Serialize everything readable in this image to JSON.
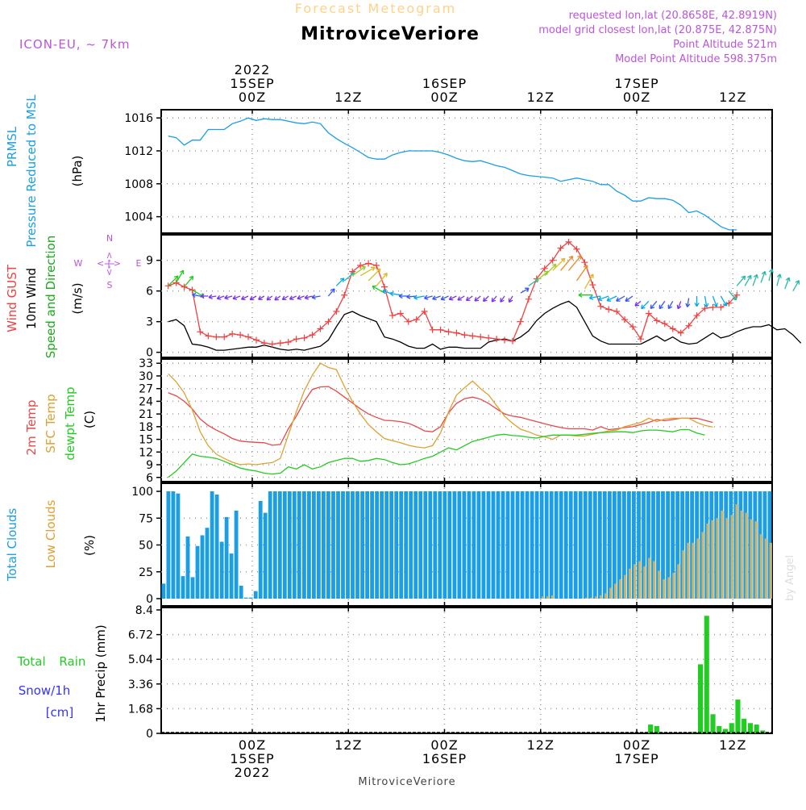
{
  "header": {
    "product": "Forecast Meteogram",
    "location": "MitroviceVeriore",
    "model": "ICON-EU, ~ 7km",
    "requested": "requested lon,lat (20.8658E, 42.8919N)",
    "closest": "model grid closest lon,lat (20.875E, 42.875N)",
    "point_alt": "Point Altitude 521m",
    "model_alt": "Model Point Altitude 598.375m",
    "credit": "by Angel",
    "footer_location": "MitroviceVeriore"
  },
  "top_axis": [
    {
      "lines": [
        "2022",
        "15SEP",
        "00Z"
      ]
    },
    {
      "lines": [
        "12Z"
      ]
    },
    {
      "lines": [
        "16SEP",
        "00Z"
      ]
    },
    {
      "lines": [
        "12Z"
      ]
    },
    {
      "lines": [
        "17SEP",
        "00Z"
      ]
    },
    {
      "lines": [
        "12Z"
      ]
    }
  ],
  "bottom_axis": [
    {
      "lines": [
        "00Z",
        "15SEP",
        "2022"
      ]
    },
    {
      "lines": [
        "12Z"
      ]
    },
    {
      "lines": [
        "00Z",
        "16SEP"
      ]
    },
    {
      "lines": [
        "12Z"
      ]
    },
    {
      "lines": [
        "00Z",
        "17SEP"
      ]
    },
    {
      "lines": [
        "12Z"
      ]
    }
  ],
  "colors": {
    "pressure": "#1a9ee6",
    "gust": "#f04040",
    "wind10m": "#000000",
    "windLabel": "#1aaa1a",
    "t2m": "#e84848",
    "sfc": "#e0a030",
    "dewpt": "#22cc22",
    "totalCloud": "#1a9ee6",
    "lowCloud": "#c8b46e",
    "rain": "#22cc22",
    "snow": "#3333ff",
    "purple": "#bb55dd"
  },
  "compass": {
    "n": "N",
    "s": "S",
    "w": "W",
    "e": "E",
    "arrows": "<-|->"
  },
  "chart_data": [
    {
      "type": "line",
      "name": "pressure",
      "ylabel_lines": [
        "PRMSL",
        "Pressure Reduced to MSL",
        "(hPa)"
      ],
      "ylim": [
        1002,
        1017
      ],
      "yticks": [
        1004,
        1008,
        1012,
        1016
      ],
      "series": [
        {
          "name": "PRMSL",
          "values": [
            1013.8,
            1013.6,
            1012.7,
            1013.3,
            1013.3,
            1014.6,
            1014.6,
            1014.6,
            1015.3,
            1015.6,
            1016.0,
            1015.7,
            1015.9,
            1015.8,
            1015.8,
            1015.6,
            1015.4,
            1015.3,
            1015.5,
            1015.3,
            1014.2,
            1013.5,
            1012.9,
            1012.4,
            1011.8,
            1011.2,
            1011.0,
            1011.0,
            1011.5,
            1011.8,
            1012.0,
            1012.0,
            1012.0,
            1012.0,
            1011.8,
            1011.5,
            1011.1,
            1010.8,
            1010.7,
            1010.8,
            1010.5,
            1010.2,
            1010.0,
            1009.6,
            1009.2,
            1009.0,
            1008.9,
            1008.8,
            1008.7,
            1008.3,
            1008.5,
            1008.7,
            1008.5,
            1008.3,
            1007.9,
            1007.9,
            1007.1,
            1006.6,
            1005.9,
            1005.9,
            1006.3,
            1006.2,
            1006.2,
            1006.0,
            1005.4,
            1004.5,
            1004.7,
            1004.2,
            1003.5,
            1002.8,
            1002.4,
            1002.4
          ]
        }
      ]
    },
    {
      "type": "line",
      "name": "wind",
      "ylabel_lines": [
        "Wind GUST",
        "10m Wind",
        "Speed and Direction",
        "(m/s)"
      ],
      "ylim": [
        -0.5,
        11.5
      ],
      "yticks": [
        0,
        3,
        6,
        9
      ],
      "series": [
        {
          "name": "Wind GUST",
          "values": [
            6.5,
            6.8,
            6.4,
            6.1,
            2.0,
            1.6,
            1.5,
            1.5,
            1.8,
            1.7,
            1.5,
            1.2,
            0.9,
            0.8,
            0.9,
            1.0,
            1.3,
            1.4,
            1.7,
            2.3,
            3.0,
            4.0,
            5.6,
            7.9,
            8.5,
            8.7,
            8.5,
            6.4,
            3.6,
            3.8,
            3.0,
            3.2,
            4.0,
            2.2,
            2.2,
            2.0,
            1.9,
            1.7,
            1.6,
            1.5,
            1.4,
            1.3,
            1.2,
            1.1,
            3.0,
            5.2,
            7.2,
            8.2,
            9.0,
            10.2,
            10.8,
            10.1,
            8.8,
            6.6,
            4.5,
            4.2,
            4.0,
            3.2,
            2.5,
            1.3,
            3.8,
            3.1,
            2.8,
            2.3,
            1.9,
            2.6,
            3.6,
            4.3,
            4.4,
            4.4,
            4.8,
            5.6
          ]
        },
        {
          "name": "10m Wind",
          "values": [
            3.0,
            3.2,
            2.6,
            0.8,
            0.7,
            0.5,
            0.2,
            0.2,
            0.3,
            0.4,
            0.5,
            0.5,
            0.7,
            0.5,
            0.3,
            0.2,
            0.3,
            0.2,
            0.4,
            0.6,
            1.2,
            2.5,
            3.7,
            4.0,
            3.6,
            3.3,
            3.0,
            1.5,
            1.3,
            1.0,
            0.6,
            0.4,
            0.4,
            0.8,
            0.3,
            0.5,
            0.5,
            0.4,
            0.4,
            0.4,
            1.0,
            1.2,
            1.3,
            1.1,
            1.5,
            2.1,
            3.1,
            3.8,
            4.3,
            4.7,
            5.0,
            4.4,
            3.0,
            1.6,
            1.1,
            0.8,
            0.8,
            0.8,
            0.8,
            0.8,
            1.2,
            1.6,
            1.1,
            1.5,
            1.0,
            0.8,
            0.9,
            1.4,
            1.9,
            1.4,
            1.6,
            2.0,
            2.3,
            2.5,
            2.5,
            2.7,
            2.2,
            2.3,
            1.7,
            0.9
          ]
        }
      ]
    },
    {
      "type": "line",
      "name": "temperature",
      "ylabel_lines": [
        "2m Temp",
        "SFC Temp",
        "dewpt Temp",
        "(C)"
      ],
      "ylim": [
        5,
        34
      ],
      "yticks": [
        6,
        9,
        12,
        15,
        18,
        21,
        24,
        27,
        30,
        33
      ],
      "series": [
        {
          "name": "2m Temp",
          "values": [
            26.0,
            25.3,
            24.0,
            22.2,
            19.8,
            18.3,
            17.2,
            16.3,
            15.2,
            14.6,
            14.4,
            14.3,
            14.2,
            13.6,
            13.8,
            17.5,
            20.5,
            24.0,
            26.8,
            27.4,
            27.5,
            26.4,
            25.0,
            23.6,
            22.2,
            21.0,
            20.2,
            19.5,
            19.4,
            19.2,
            18.8,
            18.0,
            17.0,
            16.8,
            18.0,
            21.3,
            23.5,
            24.6,
            25.0,
            24.5,
            23.5,
            22.2,
            21.0,
            20.5,
            20.2,
            19.7,
            19.2,
            18.7,
            18.2,
            17.8,
            17.5,
            17.5,
            17.5,
            17.2,
            18.0,
            17.3,
            17.5,
            17.8,
            18.0,
            18.5,
            19.0,
            19.7,
            19.4,
            19.7,
            20.0,
            20.0,
            20.0,
            19.5,
            19.0
          ]
        },
        {
          "name": "SFC Temp",
          "values": [
            30.5,
            28.6,
            26.0,
            22.0,
            16.8,
            13.5,
            11.5,
            10.5,
            9.6,
            9.0,
            9.2,
            9.0,
            9.3,
            9.5,
            10.5,
            16.0,
            21.6,
            26.5,
            30.2,
            33.0,
            32.0,
            31.5,
            27.5,
            24.0,
            21.0,
            18.5,
            16.8,
            15.2,
            14.7,
            14.2,
            13.6,
            13.2,
            13.0,
            13.5,
            16.5,
            21.5,
            25.5,
            27.2,
            28.8,
            27.0,
            25.5,
            23.0,
            20.5,
            18.8,
            17.4,
            16.8,
            16.0,
            15.6,
            15.0,
            16.0,
            16.0,
            15.8,
            15.8,
            16.2,
            16.6,
            17.0,
            17.2,
            18.0,
            18.5,
            19.0,
            20.0,
            19.2,
            19.8,
            20.0,
            20.0,
            20.0,
            19.0,
            18.3,
            17.9
          ]
        },
        {
          "name": "dewpt Temp",
          "values": [
            6.0,
            7.5,
            9.5,
            11.5,
            11.0,
            10.8,
            10.5,
            9.8,
            9.0,
            8.2,
            7.8,
            7.5,
            7.0,
            6.8,
            7.0,
            8.5,
            8.0,
            9.0,
            8.0,
            8.5,
            9.5,
            10.0,
            10.5,
            10.5,
            9.8,
            10.0,
            10.5,
            10.2,
            9.5,
            9.0,
            9.2,
            9.8,
            10.5,
            11.0,
            12.0,
            13.0,
            12.5,
            13.5,
            14.5,
            15.0,
            15.5,
            16.0,
            16.2,
            15.9,
            15.8,
            15.5,
            15.3,
            15.7,
            16.0,
            16.0,
            16.0,
            16.0,
            16.2,
            16.4,
            16.6,
            16.7,
            16.8,
            16.8,
            16.6,
            17.0,
            17.2,
            17.2,
            17.0,
            16.8,
            17.3,
            17.3,
            16.5,
            16.0
          ]
        }
      ]
    },
    {
      "type": "bar",
      "name": "clouds",
      "ylabel_lines": [
        "Total Clouds",
        "Low Clouds",
        "(%)"
      ],
      "ylim": [
        0,
        100
      ],
      "yticks": [
        0,
        25,
        50,
        75,
        100
      ],
      "series": [
        {
          "name": "Total Clouds",
          "values": [
            14,
            100,
            100,
            98,
            21,
            58,
            20,
            49,
            59,
            66,
            100,
            97,
            53,
            76,
            42,
            82,
            12,
            1,
            1,
            7,
            91,
            80,
            100,
            100,
            100,
            100,
            100,
            100,
            100,
            100,
            100,
            100,
            100,
            100,
            100,
            100,
            100,
            100,
            100,
            100,
            100,
            100,
            100,
            100,
            100,
            100,
            100,
            100,
            100,
            100,
            100,
            100,
            100,
            100,
            100,
            100,
            100,
            100,
            100,
            100,
            100,
            100,
            100,
            100,
            100,
            100,
            100,
            100,
            100,
            100,
            100,
            100,
            100,
            100,
            100,
            100,
            100,
            100,
            100,
            100,
            100,
            100,
            100,
            100,
            100,
            100,
            100,
            100,
            100,
            100,
            100,
            100,
            100,
            100,
            100,
            100,
            100,
            100,
            100,
            100,
            100,
            100,
            100,
            100,
            100,
            100,
            100,
            100,
            100,
            100,
            100,
            100,
            100,
            100,
            100,
            100,
            100,
            100,
            100,
            100,
            100,
            100,
            100,
            100,
            100,
            100
          ]
        },
        {
          "name": "Low Clouds",
          "values": [
            0,
            0,
            0,
            0,
            0,
            0,
            0,
            0,
            0,
            0,
            0,
            0,
            0,
            0,
            0,
            0,
            0,
            0,
            0,
            0,
            0,
            0,
            0,
            0,
            0,
            0,
            0,
            0,
            0,
            0,
            0,
            0,
            0,
            0,
            0,
            0,
            0,
            0,
            0,
            0,
            0,
            0,
            0,
            0,
            0,
            0,
            0,
            0,
            0,
            0,
            0,
            0,
            0,
            0,
            0,
            0,
            0,
            0,
            0,
            0,
            0,
            0,
            0,
            0,
            0,
            0,
            0,
            0,
            0,
            0,
            0,
            0,
            0,
            0,
            0,
            0,
            0,
            0,
            2,
            2,
            3,
            0,
            0,
            0,
            0,
            0,
            0,
            1,
            1,
            2,
            3,
            5,
            10,
            14,
            18,
            22,
            28,
            32,
            35,
            30,
            38,
            35,
            26,
            18,
            20,
            24,
            32,
            45,
            52,
            52,
            56,
            62,
            70,
            73,
            75,
            82,
            75,
            78,
            88,
            82,
            80,
            74,
            72,
            60,
            56,
            52
          ]
        }
      ]
    },
    {
      "type": "bar",
      "name": "precipitation",
      "ylabel_lines": [
        "1hr Precip (mm)"
      ],
      "side_labels": [
        "Total Rain",
        "Snow/1h",
        "[cm]"
      ],
      "ylim": [
        0,
        8.4
      ],
      "yticks": [
        0,
        1.68,
        3.36,
        5.04,
        6.72,
        8.4
      ],
      "series": [
        {
          "name": "Total Rain",
          "values": [
            0,
            0,
            0,
            0,
            0,
            0,
            0,
            0,
            0,
            0,
            0,
            0,
            0,
            0,
            0,
            0,
            0,
            0,
            0,
            0,
            0,
            0,
            0,
            0,
            0,
            0,
            0,
            0,
            0,
            0,
            0,
            0,
            0,
            0,
            0,
            0,
            0,
            0,
            0,
            0,
            0,
            0,
            0,
            0,
            0,
            0,
            0,
            0,
            0,
            0,
            0,
            0,
            0,
            0,
            0,
            0,
            0,
            0,
            0,
            0,
            0,
            0,
            0,
            0,
            0,
            0,
            0,
            0,
            0,
            0,
            0,
            0,
            0,
            0,
            0,
            0,
            0,
            0,
            0.6,
            0.5,
            0,
            0,
            0,
            0,
            0,
            0.1,
            4.7,
            8.0,
            1.3,
            0.5,
            0.3,
            0.7,
            2.3,
            1.0,
            0.7,
            0.6,
            0.2,
            0
          ]
        }
      ]
    }
  ],
  "wind_arrows": {
    "series": [
      {
        "speed": [
          6.5,
          6.8,
          6.4,
          6.1,
          5.5,
          5.5,
          5.5,
          5.5,
          5.5,
          5.5,
          5.5,
          5.5,
          5.5,
          5.5,
          5.5,
          5.5,
          5.5,
          5.5,
          5.5,
          5.5,
          5.5,
          6.5,
          7.0,
          7.5,
          7.5,
          7.0,
          6.5,
          5.8,
          5.7,
          5.6,
          5.5,
          5.5,
          5.5,
          5.5,
          5.5,
          5.5,
          5.5,
          5.5,
          5.5,
          5.5,
          5.5,
          5.5,
          5.5,
          5.5,
          5.8,
          6.5,
          7.0,
          7.5,
          8.0,
          8.0,
          8.0,
          7.0,
          6.2,
          5.6,
          5.5,
          5.5,
          5.5,
          5.5,
          5.5,
          5.0,
          5.0,
          5.0,
          5.0,
          5.0,
          5.0,
          5.3,
          5.5,
          5.5,
          5.5,
          5.5,
          6.0,
          6.5,
          6.5,
          6.5,
          6.8,
          7.0,
          6.5,
          6.2,
          6.0
        ],
        "dir_deg": [
          45,
          30,
          40,
          120,
          280,
          270,
          260,
          250,
          255,
          250,
          245,
          240,
          240,
          235,
          235,
          240,
          245,
          250,
          255,
          260,
          40,
          45,
          50,
          55,
          60,
          45,
          40,
          300,
          290,
          280,
          270,
          265,
          260,
          255,
          250,
          245,
          245,
          240,
          235,
          230,
          225,
          220,
          215,
          210,
          60,
          55,
          50,
          45,
          45,
          40,
          40,
          35,
          30,
          270,
          260,
          250,
          245,
          240,
          235,
          230,
          225,
          220,
          215,
          210,
          200,
          190,
          180,
          170,
          160,
          150,
          140,
          40,
          30,
          20,
          20,
          15,
          15,
          20,
          30
        ]
      }
    ]
  }
}
